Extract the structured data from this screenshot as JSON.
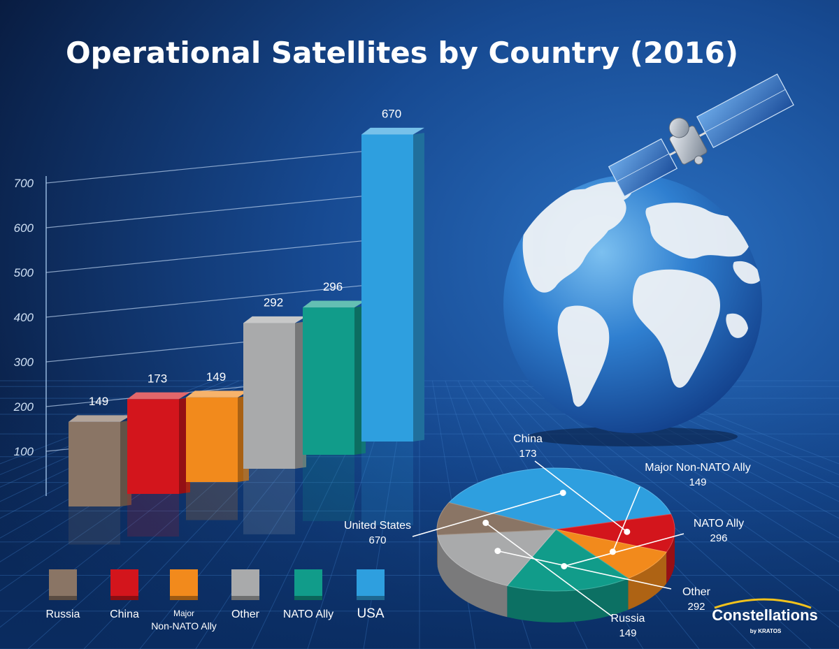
{
  "title": "Operational Satellites by Country (2016)",
  "logo": {
    "text": "Constellations",
    "sub": "by KRATOS"
  },
  "colors": {
    "Russia": "#8a7565",
    "China": "#d3151c",
    "Major Non-NATO Ally": "#f28a1c",
    "Other": "#a9aaab",
    "NATO Ally": "#119c8a",
    "USA": "#2e9fdf"
  },
  "chart_data": [
    {
      "type": "bar",
      "title": "",
      "categories": [
        "Russia",
        "China",
        "Major Non-NATO Ally",
        "Other",
        "NATO Ally",
        "USA"
      ],
      "values": [
        149,
        173,
        149,
        292,
        296,
        670
      ],
      "value_labels": [
        "149",
        "173",
        "149",
        "292",
        "296",
        "670"
      ],
      "yticks": [
        "100",
        "200",
        "300",
        "400",
        "500",
        "600",
        "700"
      ],
      "ylim": [
        0,
        700
      ],
      "grid": true,
      "legend": {
        "position": "bottom-left",
        "entries": [
          {
            "label": "Russia"
          },
          {
            "label": "China"
          },
          {
            "label": "Major",
            "label2": "Non-NATO Ally"
          },
          {
            "label": "Other"
          },
          {
            "label": "NATO Ally"
          },
          {
            "label": "USA"
          }
        ]
      }
    },
    {
      "type": "pie",
      "slices": [
        {
          "name": "United States",
          "value": 670,
          "value_label": "670",
          "color_key": "USA"
        },
        {
          "name": "China",
          "value": 173,
          "value_label": "173",
          "color_key": "China"
        },
        {
          "name": "Major Non-NATO Ally",
          "value": 149,
          "value_label": "149",
          "color_key": "Major Non-NATO Ally"
        },
        {
          "name": "NATO Ally",
          "value": 296,
          "value_label": "296",
          "color_key": "NATO Ally"
        },
        {
          "name": "Other",
          "value": 292,
          "value_label": "292",
          "color_key": "Other"
        },
        {
          "name": "Russia",
          "value": 149,
          "value_label": "149",
          "color_key": "Russia"
        }
      ]
    }
  ]
}
